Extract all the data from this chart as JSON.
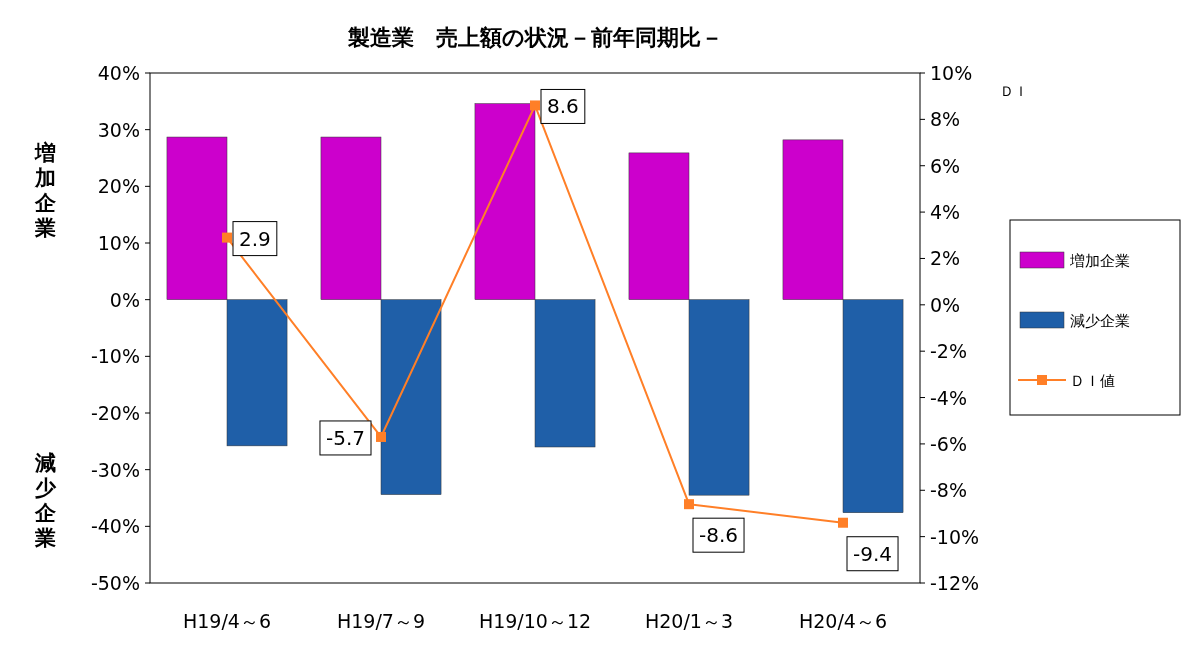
{
  "chart_data": {
    "type": "bar",
    "title": "製造業　売上額の状況－前年同期比－",
    "ylabel": "増加企業",
    "y2label": "ＤＩ",
    "annotations": [
      "減少企業"
    ],
    "categories": [
      "H19/4～6",
      "H19/7～9",
      "H19/10～12",
      "H20/1～3",
      "H20/4～6"
    ],
    "series": [
      {
        "name": "増加企業",
        "color": "#cc00cc",
        "values": [
          28.7,
          28.7,
          34.6,
          25.9,
          28.2
        ]
      },
      {
        "name": "減少企業",
        "color": "#1f5fa8",
        "values": [
          -25.8,
          -34.4,
          -26.0,
          -34.5,
          -37.6
        ]
      },
      {
        "name": "ＤＩ値",
        "type": "line",
        "axis": "y2",
        "color": "#ff7f27",
        "marker": "square",
        "values": [
          2.9,
          -5.7,
          8.6,
          -8.6,
          -9.4
        ],
        "value_labels": [
          "2.9",
          "-5.7",
          "8.6",
          "-8.6",
          "-9.4"
        ]
      }
    ],
    "ylim": [
      -50,
      40
    ],
    "yticks": [
      {
        "value": -50,
        "label": "-50%"
      },
      {
        "value": -40,
        "label": "-40%"
      },
      {
        "value": -30,
        "label": "-30%"
      },
      {
        "value": -20,
        "label": "-20%"
      },
      {
        "value": -10,
        "label": "-10%"
      },
      {
        "value": 0,
        "label": "0%"
      },
      {
        "value": 10,
        "label": "10%"
      },
      {
        "value": 20,
        "label": "20%"
      },
      {
        "value": 30,
        "label": "30%"
      },
      {
        "value": 40,
        "label": "40%"
      }
    ],
    "y2lim": [
      -12,
      10
    ],
    "y2ticks": [
      {
        "value": -12,
        "label": "-12%"
      },
      {
        "value": -10,
        "label": "-10%"
      },
      {
        "value": -8,
        "label": "-8%"
      },
      {
        "value": -6,
        "label": "-6%"
      },
      {
        "value": -4,
        "label": "-4%"
      },
      {
        "value": -2,
        "label": "-2%"
      },
      {
        "value": 0,
        "label": "0%"
      },
      {
        "value": 2,
        "label": "2%"
      },
      {
        "value": 4,
        "label": "4%"
      },
      {
        "value": 6,
        "label": "6%"
      },
      {
        "value": 8,
        "label": "8%"
      },
      {
        "value": 10,
        "label": "10%"
      }
    ],
    "legend": "right",
    "grid": false
  }
}
